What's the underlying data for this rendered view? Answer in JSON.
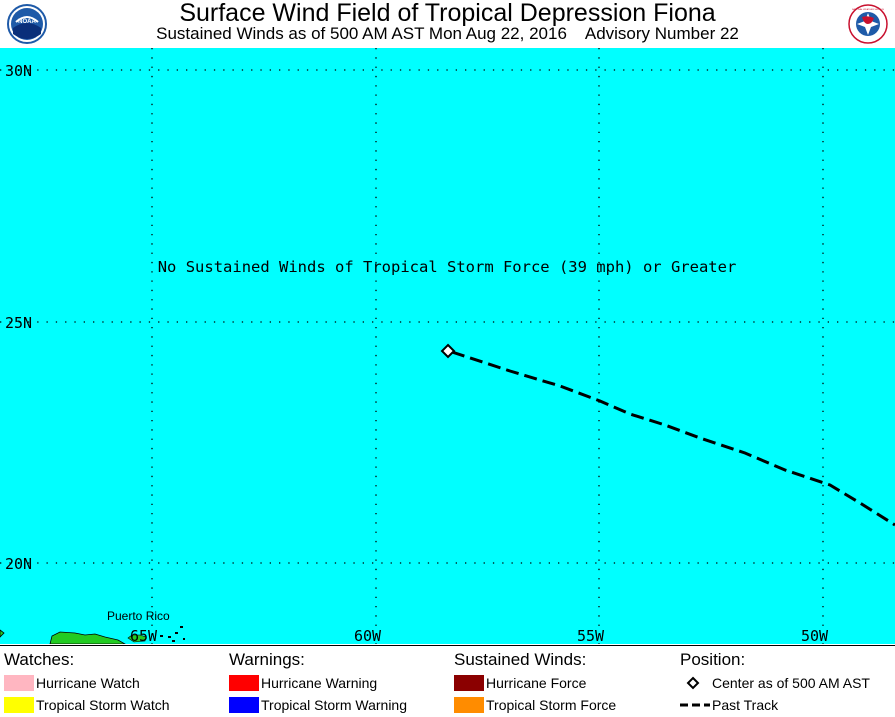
{
  "header": {
    "title": "Surface Wind Field of Tropical Depression Fiona",
    "subtitle": "Sustained Winds as of 500 AM AST Mon Aug 22, 2016    Advisory Number 22",
    "noaa_logo_text": "NOAA",
    "nws_logo_text": "NATIONAL WEATHER SERVICE"
  },
  "map": {
    "lat_labels": [
      "30N",
      "25N",
      "20N"
    ],
    "lon_labels": [
      "65W",
      "60W",
      "55W",
      "50W"
    ],
    "notice": "No Sustained Winds of Tropical Storm Force (39 mph) or Greater",
    "place_label": "Puerto Rico",
    "colors": {
      "ocean": "#00ffff",
      "land": "#22cc22",
      "grid": "#000000",
      "track": "#000000"
    }
  },
  "legend": {
    "watches": {
      "heading": "Watches:",
      "items": [
        {
          "label": "Hurricane Watch",
          "color": "#ffb6c1"
        },
        {
          "label": "Tropical Storm Watch",
          "color": "#ffff00"
        }
      ]
    },
    "warnings": {
      "heading": "Warnings:",
      "items": [
        {
          "label": "Hurricane Warning",
          "color": "#ff0000"
        },
        {
          "label": "Tropical Storm Warning",
          "color": "#0000ff"
        }
      ]
    },
    "winds": {
      "heading": "Sustained Winds:",
      "items": [
        {
          "label": "Hurricane Force",
          "color": "#8b0000"
        },
        {
          "label": "Tropical Storm Force",
          "color": "#ff8c00"
        }
      ]
    },
    "position": {
      "heading": "Position:",
      "center_label": "Center as of 500 AM AST",
      "track_label": "Past Track"
    }
  }
}
